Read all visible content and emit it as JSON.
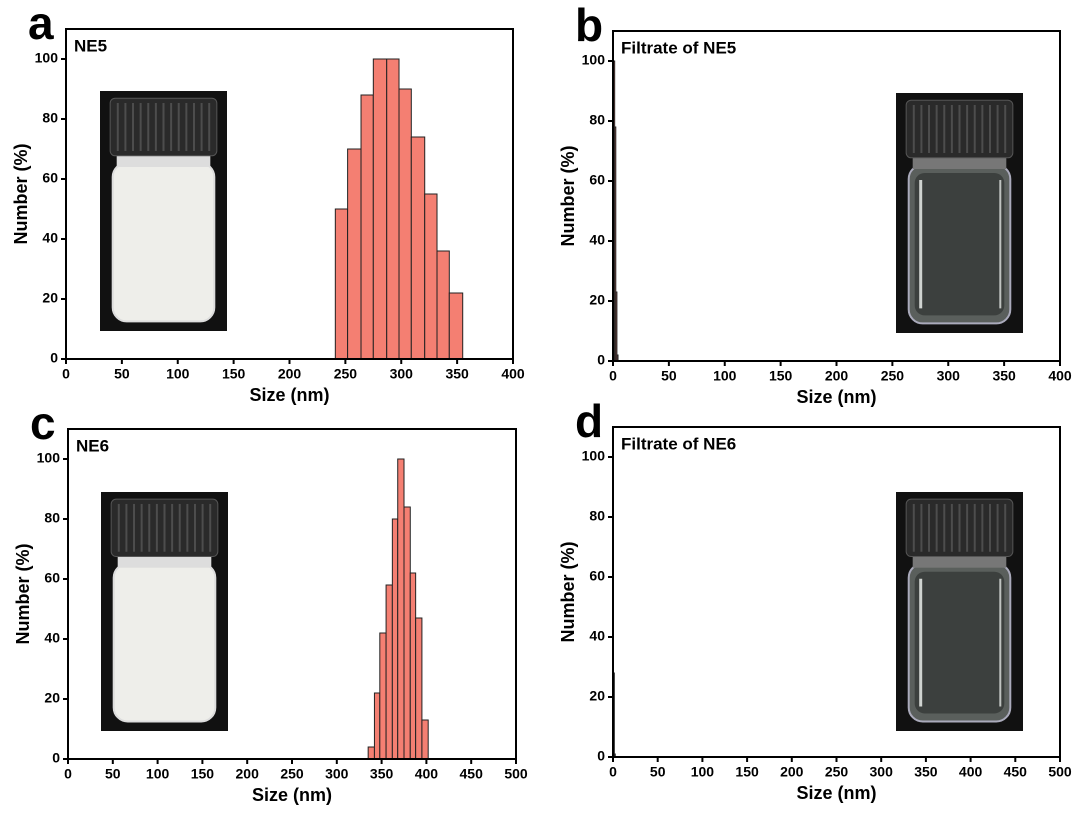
{
  "chart_data": [
    {
      "type": "histogram",
      "panel_label": "a",
      "annotation": "NE5",
      "x_label": "Size (nm)",
      "y_label": "Number (%)",
      "bins": [
        241,
        252,
        264,
        275,
        287,
        298,
        309,
        321,
        332,
        343,
        355
      ],
      "counts": [
        50,
        70,
        88,
        100,
        100,
        90,
        74,
        55,
        36,
        22
      ],
      "color": "#f47f72",
      "xlim": [
        0,
        400
      ],
      "xticks": [
        0,
        50,
        100,
        150,
        200,
        250,
        300,
        350,
        400
      ],
      "ylim": [
        0,
        110
      ],
      "yticks": [
        0,
        20,
        40,
        60,
        80,
        100
      ]
    },
    {
      "type": "histogram",
      "panel_label": "b",
      "annotation": "Filtrate of NE5",
      "x_label": "Size (nm)",
      "y_label": "Number (%)",
      "bins": [
        0.5,
        1.5,
        2.5,
        3.5,
        4.5
      ],
      "counts": [
        100,
        78,
        23,
        2
      ],
      "color": "#f47f72",
      "xlim": [
        0,
        400
      ],
      "xticks": [
        0,
        50,
        100,
        150,
        200,
        250,
        300,
        350,
        400
      ],
      "ylim": [
        0,
        110
      ],
      "yticks": [
        0,
        20,
        40,
        60,
        80,
        100
      ]
    },
    {
      "type": "histogram",
      "panel_label": "c",
      "annotation": "NE6",
      "x_label": "Size (nm)",
      "y_label": "Number (%)",
      "bins": [
        335,
        342,
        348,
        355,
        362,
        368,
        375,
        382,
        388,
        395,
        402
      ],
      "counts": [
        4,
        22,
        42,
        58,
        80,
        100,
        84,
        62,
        47,
        13
      ],
      "color": "#f47f72",
      "xlim": [
        0,
        500
      ],
      "xticks": [
        0,
        50,
        100,
        150,
        200,
        250,
        300,
        350,
        400,
        450,
        500
      ],
      "ylim": [
        0,
        110
      ],
      "yticks": [
        0,
        20,
        40,
        60,
        80,
        100
      ]
    },
    {
      "type": "histogram",
      "panel_label": "d",
      "annotation": "Filtrate of NE6",
      "x_label": "Size (nm)",
      "y_label": "Number (%)",
      "bins": [
        0.5,
        1.5,
        2.5
      ],
      "counts": [
        28,
        1
      ],
      "color": "#f47f72",
      "xlim": [
        0,
        500
      ],
      "xticks": [
        0,
        50,
        100,
        150,
        200,
        250,
        300,
        350,
        400,
        450,
        500
      ],
      "ylim": [
        0,
        110
      ],
      "yticks": [
        0,
        20,
        40,
        60,
        80,
        100
      ]
    }
  ]
}
